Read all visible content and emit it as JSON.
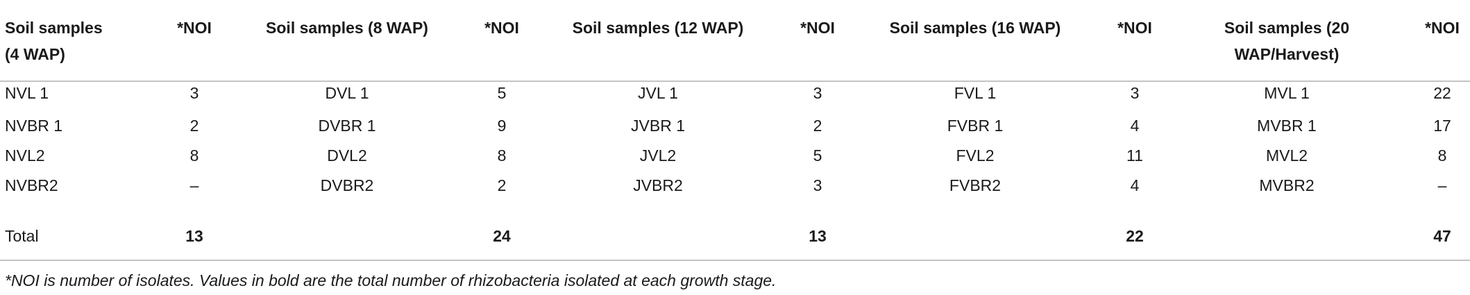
{
  "table": {
    "header": [
      "Soil samples (4 WAP)",
      "*NOI",
      "Soil samples (8 WAP)",
      "*NOI",
      "Soil samples (12 WAP)",
      "*NOI",
      "Soil samples (16 WAP)",
      "*NOI",
      "Soil samples (20 WAP/Harvest)",
      "*NOI"
    ],
    "rows": [
      [
        "NVL 1",
        3,
        "DVL 1",
        5,
        "JVL 1",
        3,
        "FVL 1",
        3,
        "MVL 1",
        22
      ],
      [
        "NVBR 1",
        2,
        "DVBR 1",
        9,
        "JVBR 1",
        2,
        "FVBR 1",
        4,
        "MVBR 1",
        17
      ],
      [
        "NVL2",
        8,
        "DVL2",
        8,
        "JVL2",
        5,
        "FVL2",
        11,
        "MVL2",
        8
      ],
      [
        "NVBR2",
        "–",
        "DVBR2",
        2,
        "JVBR2",
        3,
        "FVBR2",
        4,
        "MVBR2",
        "–"
      ]
    ],
    "total": {
      "label": "Total",
      "values": [
        13,
        24,
        13,
        22,
        47
      ]
    },
    "footnote": "*NOI is number of isolates. Values in bold are the total number of rhizobacteria isolated at each growth stage."
  }
}
